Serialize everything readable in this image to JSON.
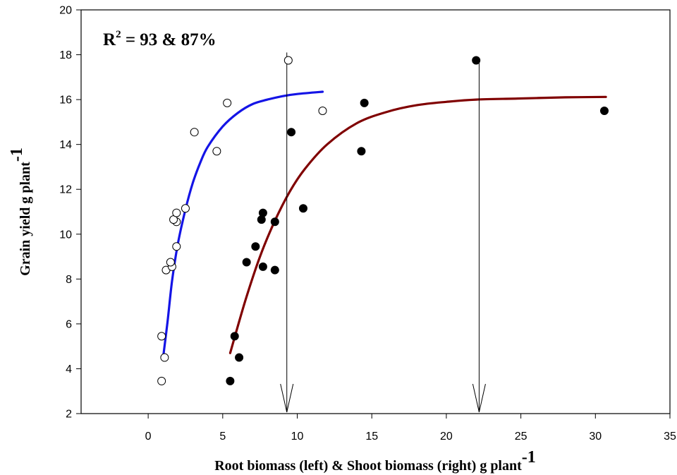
{
  "chart_data": {
    "type": "scatter",
    "title": "",
    "annotation": {
      "prefix": "R",
      "superscript": "2",
      "text": " = 93 & 87%"
    },
    "xlabel": {
      "text": "Root biomass (left) & Shoot biomass (right)  g plant",
      "superscript": "-1"
    },
    "ylabel": {
      "text": "Grain yield  g plant",
      "superscript": "-1"
    },
    "xlim": [
      -4.5,
      35
    ],
    "ylim": [
      2,
      20
    ],
    "x_ticks": [
      0,
      5,
      10,
      15,
      20,
      25,
      30,
      35
    ],
    "y_ticks": [
      2,
      4,
      6,
      8,
      10,
      12,
      14,
      16,
      18,
      20
    ],
    "grid": false,
    "series": [
      {
        "marker": "open-circle",
        "color": "#000000",
        "points": [
          [
            0.9,
            3.45
          ],
          [
            1.1,
            4.5
          ],
          [
            0.9,
            5.45
          ],
          [
            1.2,
            8.4
          ],
          [
            1.6,
            8.55
          ],
          [
            1.5,
            8.75
          ],
          [
            1.9,
            9.45
          ],
          [
            1.9,
            10.55
          ],
          [
            1.7,
            10.65
          ],
          [
            1.9,
            10.95
          ],
          [
            2.5,
            11.15
          ],
          [
            4.6,
            13.7
          ],
          [
            3.1,
            14.55
          ],
          [
            5.3,
            15.85
          ],
          [
            11.7,
            15.5
          ],
          [
            9.4,
            17.75
          ]
        ]
      },
      {
        "marker": "filled-circle",
        "color": "#000000",
        "points": [
          [
            5.5,
            3.45
          ],
          [
            6.1,
            4.5
          ],
          [
            5.8,
            5.45
          ],
          [
            6.6,
            8.75
          ],
          [
            7.7,
            8.55
          ],
          [
            8.5,
            8.4
          ],
          [
            7.2,
            9.45
          ],
          [
            8.5,
            10.55
          ],
          [
            7.6,
            10.65
          ],
          [
            7.7,
            10.95
          ],
          [
            10.4,
            11.15
          ],
          [
            9.6,
            14.55
          ],
          [
            14.3,
            13.7
          ],
          [
            14.5,
            15.85
          ],
          [
            30.6,
            15.5
          ],
          [
            22.0,
            17.75
          ]
        ]
      }
    ],
    "fits": [
      {
        "color": "#1414e6",
        "x": [
          1.0,
          1.3,
          1.6,
          2.0,
          2.5,
          3.0,
          3.5,
          4.0,
          5.0,
          6.0,
          7.0,
          8.0,
          9.0,
          10.0,
          11.7
        ],
        "y": [
          4.5,
          6.1,
          7.9,
          9.6,
          11.1,
          12.3,
          13.2,
          13.9,
          14.8,
          15.4,
          15.8,
          16.0,
          16.15,
          16.25,
          16.35
        ]
      },
      {
        "color": "#800000",
        "x": [
          5.5,
          6.5,
          7.5,
          8.5,
          9.5,
          10.5,
          12.0,
          14.0,
          16.0,
          18.0,
          20.0,
          22.0,
          25.0,
          28.0,
          30.7
        ],
        "y": [
          4.7,
          7.0,
          9.0,
          10.6,
          11.9,
          12.9,
          14.0,
          14.95,
          15.45,
          15.75,
          15.9,
          16.0,
          16.05,
          16.1,
          16.12
        ]
      }
    ],
    "arrows": [
      {
        "x": 9.3,
        "y_from": 18.1,
        "y_to": 2
      },
      {
        "x": 22.2,
        "y_from": 17.8,
        "y_to": 2
      }
    ]
  }
}
